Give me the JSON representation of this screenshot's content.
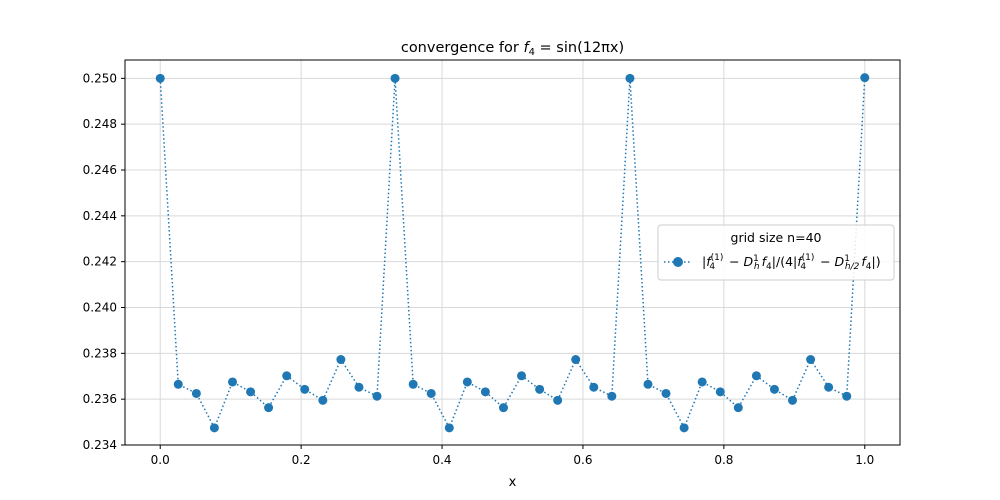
{
  "chart_data": {
    "type": "line",
    "title": "convergence for f4 = sin(12πx)",
    "title_parts": {
      "prefix": "convergence for ",
      "func": "f",
      "func_sub": "4",
      "rhs": " = sin(12πx)"
    },
    "xlabel": "x",
    "ylabel": "",
    "xlim": [
      -0.05,
      1.05
    ],
    "ylim": [
      0.234,
      0.2508
    ],
    "xticks": [
      0.0,
      0.2,
      0.4,
      0.6,
      0.8,
      1.0
    ],
    "xtick_labels": [
      "0.0",
      "0.2",
      "0.4",
      "0.6",
      "0.8",
      "1.0"
    ],
    "yticks": [
      0.234,
      0.236,
      0.238,
      0.24,
      0.242,
      0.244,
      0.246,
      0.248,
      0.25
    ],
    "ytick_labels": [
      "0.234",
      "0.236",
      "0.238",
      "0.240",
      "0.242",
      "0.244",
      "0.246",
      "0.248",
      "0.250"
    ],
    "grid": true,
    "legend": {
      "placement": "center-right",
      "title": "grid size n=40",
      "entry": "|f4(1) − Dh1 f4|/(4|f4(1) − Dh/21 f4|)"
    },
    "series": [
      {
        "name": "|f4(1) − Dh1 f4|/(4|f4(1) − Dh/21 f4|)",
        "color": "#1f77b4",
        "linestyle": "dotted",
        "marker": "circle",
        "x": [
          0.0,
          0.0256,
          0.0513,
          0.0769,
          0.1026,
          0.1282,
          0.1538,
          0.1795,
          0.2051,
          0.2308,
          0.2564,
          0.2821,
          0.3077,
          0.3333,
          0.359,
          0.3846,
          0.4103,
          0.4359,
          0.4615,
          0.4872,
          0.5128,
          0.5385,
          0.5641,
          0.5897,
          0.6154,
          0.641,
          0.6667,
          0.6923,
          0.7179,
          0.7436,
          0.7692,
          0.7949,
          0.8205,
          0.8462,
          0.8718,
          0.8974,
          0.9231,
          0.9487,
          0.9744,
          1.0
        ],
        "y": [
          0.25,
          0.23665,
          0.23625,
          0.23475,
          0.23675,
          0.23632,
          0.23563,
          0.23702,
          0.23643,
          0.23595,
          0.23773,
          0.23652,
          0.23613,
          0.25,
          0.23665,
          0.23625,
          0.23475,
          0.23675,
          0.23632,
          0.23563,
          0.23702,
          0.23643,
          0.23595,
          0.23773,
          0.23652,
          0.23613,
          0.25,
          0.23665,
          0.23625,
          0.23475,
          0.23675,
          0.23632,
          0.23563,
          0.23702,
          0.23643,
          0.23595,
          0.23773,
          0.23652,
          0.23613,
          0.25003
        ]
      }
    ]
  }
}
